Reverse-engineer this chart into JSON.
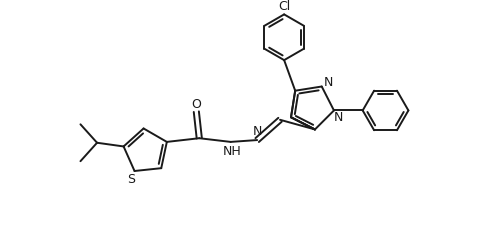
{
  "background": "#ffffff",
  "line_color": "#1a1a1a",
  "lw": 1.4,
  "figsize": [
    4.91,
    2.33
  ],
  "dpi": 100,
  "xlim": [
    -1.5,
    9.5
  ],
  "ylim": [
    -0.5,
    5.5
  ]
}
